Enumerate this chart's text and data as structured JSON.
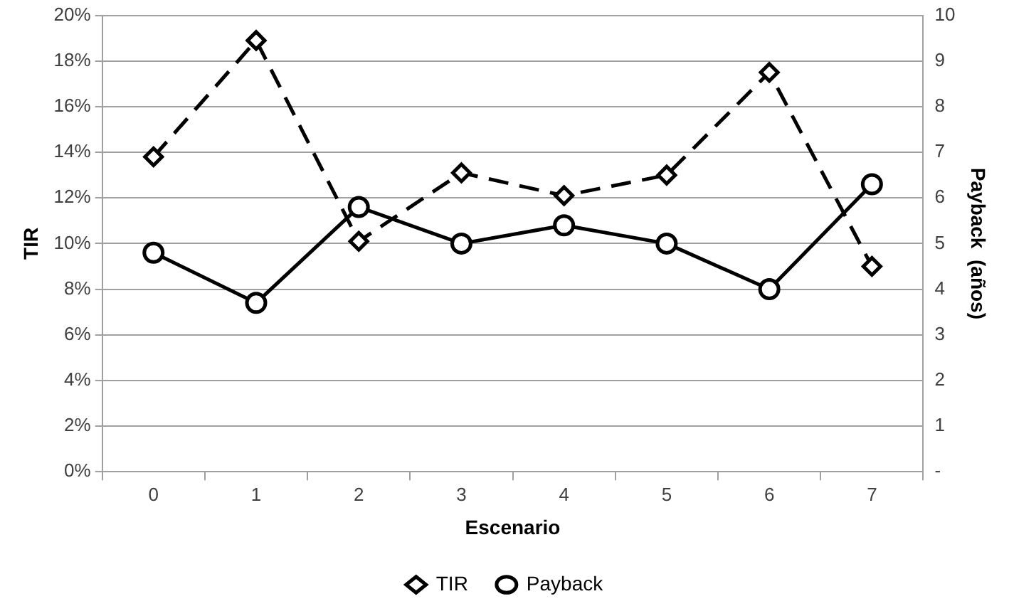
{
  "chart_data": {
    "type": "line",
    "xlabel": "Escenario",
    "ylabel": "TIR",
    "y2label": "Payback  (años)",
    "categories": [
      "0",
      "1",
      "2",
      "3",
      "4",
      "5",
      "6",
      "7"
    ],
    "series": [
      {
        "name": "TIR",
        "color": "#000000",
        "marker": "diamond",
        "line_style": "dashed",
        "values": [
          13.8,
          18.9,
          10.1,
          13.1,
          12.1,
          13.0,
          17.5,
          9.0
        ]
      },
      {
        "name": "Payback",
        "color": "#000000",
        "marker": "circle",
        "line_style": "solid",
        "axis": "y2",
        "values": [
          4.8,
          3.7,
          5.8,
          5.0,
          5.4,
          5.0,
          4.0,
          6.3
        ]
      }
    ],
    "ylim": [
      0,
      20
    ],
    "yticks": [
      {
        "value": 0,
        "label": "0%"
      },
      {
        "value": 2,
        "label": "2%"
      },
      {
        "value": 4,
        "label": "4%"
      },
      {
        "value": 6,
        "label": "6%"
      },
      {
        "value": 8,
        "label": "8%"
      },
      {
        "value": 10,
        "label": "10%"
      },
      {
        "value": 12,
        "label": "12%"
      },
      {
        "value": 14,
        "label": "14%"
      },
      {
        "value": 16,
        "label": "16%"
      },
      {
        "value": 18,
        "label": "18%"
      },
      {
        "value": 20,
        "label": "20%"
      }
    ],
    "y2lim": [
      0,
      10
    ],
    "y2ticks": [
      {
        "value": 0,
        "label": "-"
      },
      1,
      2,
      3,
      4,
      5,
      6,
      7,
      8,
      9,
      10
    ],
    "grid": "y",
    "legend": "bottom"
  }
}
